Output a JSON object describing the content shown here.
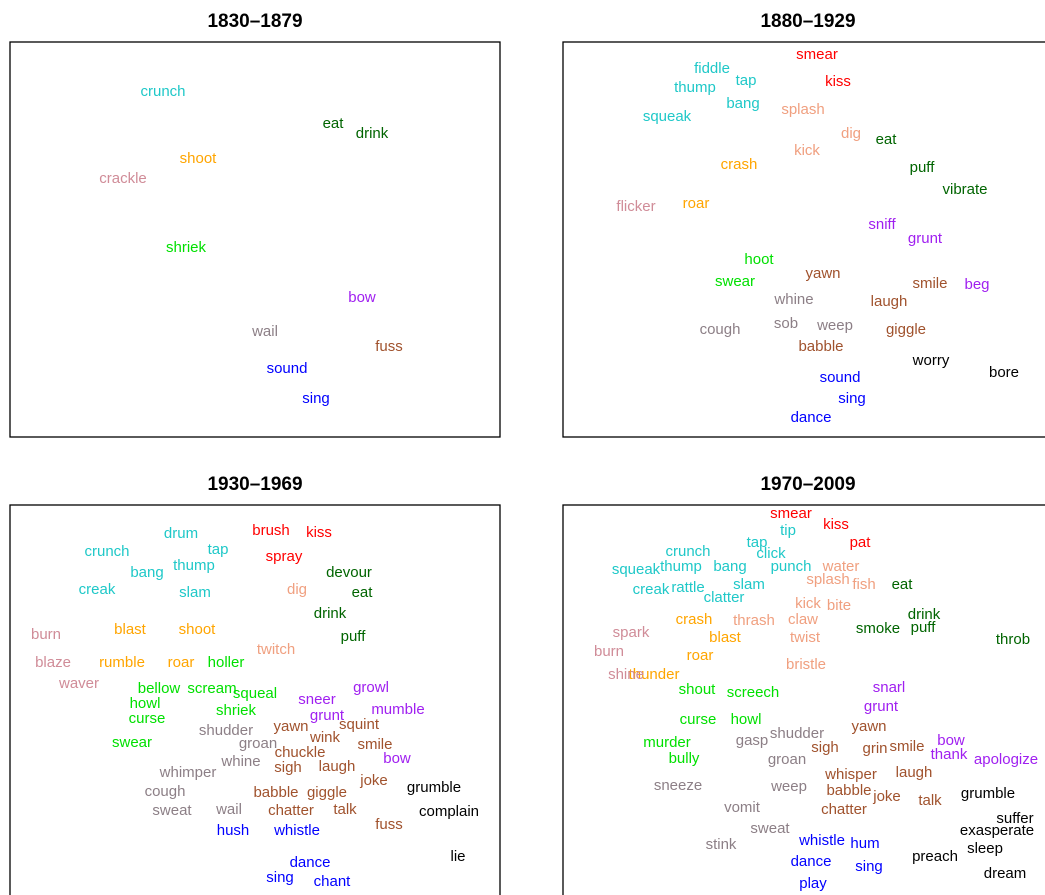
{
  "chart_data": [
    {
      "type": "scatter",
      "title": "1830–1879",
      "xlim": [
        0,
        490
      ],
      "ylim": [
        395,
        0
      ],
      "series": [
        {
          "color": "#1fc8c8",
          "labels": [
            "crunch"
          ],
          "x": [
            153
          ],
          "y": [
            50
          ]
        },
        {
          "color": "#006400",
          "labels": [
            "eat",
            "drink"
          ],
          "x": [
            323,
            362
          ],
          "y": [
            82,
            92
          ]
        },
        {
          "color": "#ffa500",
          "labels": [
            "shoot"
          ],
          "x": [
            188
          ],
          "y": [
            117
          ]
        },
        {
          "color": "#d08c98",
          "labels": [
            "crackle"
          ],
          "x": [
            113
          ],
          "y": [
            137
          ]
        },
        {
          "color": "#00e000",
          "labels": [
            "shriek"
          ],
          "x": [
            176
          ],
          "y": [
            206
          ]
        },
        {
          "color": "#a020f0",
          "labels": [
            "bow"
          ],
          "x": [
            352
          ],
          "y": [
            256
          ]
        },
        {
          "color": "#8c7f86",
          "labels": [
            "wail"
          ],
          "x": [
            255
          ],
          "y": [
            290
          ]
        },
        {
          "color": "#a0522d",
          "labels": [
            "fuss"
          ],
          "x": [
            379
          ],
          "y": [
            305
          ]
        },
        {
          "color": "#0000ff",
          "labels": [
            "sound",
            "sing"
          ],
          "x": [
            277,
            306
          ],
          "y": [
            327,
            357
          ]
        }
      ]
    },
    {
      "type": "scatter",
      "title": "1880–1929",
      "xlim": [
        0,
        490
      ],
      "ylim": [
        395,
        0
      ],
      "series": [
        {
          "color": "#ff0000",
          "labels": [
            "smear",
            "kiss"
          ],
          "x": [
            254,
            275
          ],
          "y": [
            13,
            40
          ]
        },
        {
          "color": "#1fc8c8",
          "labels": [
            "fiddle",
            "thump",
            "tap",
            "bang",
            "squeak"
          ],
          "x": [
            149,
            132,
            183,
            180,
            104
          ],
          "y": [
            27,
            46,
            39,
            62,
            75
          ]
        },
        {
          "color": "#f0a080",
          "labels": [
            "splash",
            "dig",
            "kick"
          ],
          "x": [
            240,
            288,
            244
          ],
          "y": [
            68,
            92,
            109
          ]
        },
        {
          "color": "#006400",
          "labels": [
            "eat",
            "puff",
            "vibrate"
          ],
          "x": [
            323,
            359,
            402
          ],
          "y": [
            98,
            126,
            148
          ]
        },
        {
          "color": "#ffa500",
          "labels": [
            "crash",
            "roar"
          ],
          "x": [
            176,
            133
          ],
          "y": [
            123,
            162
          ]
        },
        {
          "color": "#d08c98",
          "labels": [
            "flicker"
          ],
          "x": [
            73
          ],
          "y": [
            165
          ]
        },
        {
          "color": "#a020f0",
          "labels": [
            "sniff",
            "grunt",
            "beg"
          ],
          "x": [
            319,
            362,
            414
          ],
          "y": [
            183,
            197,
            243
          ]
        },
        {
          "color": "#00e000",
          "labels": [
            "hoot",
            "swear"
          ],
          "x": [
            196,
            172
          ],
          "y": [
            218,
            240
          ]
        },
        {
          "color": "#a0522d",
          "labels": [
            "yawn",
            "smile",
            "laugh",
            "giggle",
            "babble"
          ],
          "x": [
            260,
            367,
            326,
            343,
            258
          ],
          "y": [
            232,
            242,
            260,
            288,
            305
          ]
        },
        {
          "color": "#8c7f86",
          "labels": [
            "whine",
            "sob",
            "weep",
            "cough"
          ],
          "x": [
            231,
            223,
            272,
            157
          ],
          "y": [
            258,
            282,
            284,
            288
          ]
        },
        {
          "color": "#000000",
          "labels": [
            "worry",
            "bore"
          ],
          "x": [
            368,
            441
          ],
          "y": [
            319,
            331
          ]
        },
        {
          "color": "#0000ff",
          "labels": [
            "sound",
            "sing",
            "dance"
          ],
          "x": [
            277,
            289,
            248
          ],
          "y": [
            336,
            357,
            376
          ]
        }
      ]
    },
    {
      "type": "scatter",
      "title": "1930–1969",
      "xlim": [
        0,
        490
      ],
      "ylim": [
        395,
        0
      ],
      "series": [
        {
          "color": "#1fc8c8",
          "labels": [
            "drum",
            "tap",
            "crunch",
            "bang",
            "thump",
            "creak",
            "slam"
          ],
          "x": [
            171,
            208,
            97,
            137,
            184,
            87,
            185
          ],
          "y": [
            29,
            45,
            47,
            68,
            61,
            85,
            88
          ]
        },
        {
          "color": "#ff0000",
          "labels": [
            "brush",
            "kiss",
            "spray"
          ],
          "x": [
            261,
            309,
            274
          ],
          "y": [
            26,
            28,
            52
          ]
        },
        {
          "color": "#006400",
          "labels": [
            "devour",
            "eat",
            "drink",
            "puff"
          ],
          "x": [
            339,
            352,
            320,
            343
          ],
          "y": [
            68,
            88,
            109,
            132
          ]
        },
        {
          "color": "#f0a080",
          "labels": [
            "dig",
            "twitch"
          ],
          "x": [
            287,
            266
          ],
          "y": [
            85,
            145
          ]
        },
        {
          "color": "#ffa500",
          "labels": [
            "blast",
            "shoot",
            "rumble",
            "roar"
          ],
          "x": [
            120,
            187,
            112,
            171
          ],
          "y": [
            125,
            125,
            158,
            158
          ]
        },
        {
          "color": "#d08c98",
          "labels": [
            "burn",
            "blaze",
            "waver"
          ],
          "x": [
            36,
            43,
            69
          ],
          "y": [
            130,
            158,
            179
          ]
        },
        {
          "color": "#00e000",
          "labels": [
            "holler",
            "bellow",
            "scream",
            "squeal",
            "howl",
            "shriek",
            "curse",
            "swear"
          ],
          "x": [
            216,
            149,
            202,
            245,
            135,
            226,
            137,
            122
          ],
          "y": [
            158,
            184,
            184,
            189,
            199,
            206,
            214,
            238
          ]
        },
        {
          "color": "#a020f0",
          "labels": [
            "sneer",
            "growl",
            "grunt",
            "mumble",
            "bow"
          ],
          "x": [
            307,
            361,
            317,
            388,
            387
          ],
          "y": [
            195,
            183,
            211,
            205,
            254
          ]
        },
        {
          "color": "#a0522d",
          "labels": [
            "yawn",
            "wink",
            "squint",
            "smile",
            "chuckle",
            "sigh",
            "laugh",
            "joke",
            "babble",
            "giggle",
            "chatter",
            "talk",
            "fuss"
          ],
          "x": [
            281,
            315,
            349,
            365,
            290,
            278,
            327,
            364,
            266,
            317,
            281,
            335,
            379
          ],
          "y": [
            222,
            233,
            220,
            240,
            248,
            263,
            262,
            276,
            288,
            288,
            306,
            305,
            320
          ]
        },
        {
          "color": "#8c7f86",
          "labels": [
            "shudder",
            "groan",
            "whine",
            "whimper",
            "cough",
            "sweat",
            "wail"
          ],
          "x": [
            216,
            248,
            231,
            178,
            155,
            162,
            219
          ],
          "y": [
            226,
            239,
            257,
            268,
            287,
            306,
            305
          ]
        },
        {
          "color": "#000000",
          "labels": [
            "grumble",
            "complain",
            "lie"
          ],
          "x": [
            424,
            439,
            448
          ],
          "y": [
            283,
            307,
            352
          ]
        },
        {
          "color": "#0000ff",
          "labels": [
            "hush",
            "whistle",
            "dance",
            "sing",
            "chant"
          ],
          "x": [
            223,
            287,
            300,
            270,
            322
          ],
          "y": [
            326,
            326,
            358,
            373,
            377
          ]
        }
      ]
    },
    {
      "type": "scatter",
      "title": "1970–2009",
      "xlim": [
        0,
        490
      ],
      "ylim": [
        395,
        0
      ],
      "series": [
        {
          "color": "#ff0000",
          "labels": [
            "smear",
            "kiss",
            "pat"
          ],
          "x": [
            228,
            273,
            297
          ],
          "y": [
            9,
            20,
            38
          ]
        },
        {
          "color": "#1fc8c8",
          "labels": [
            "tip",
            "tap",
            "click",
            "crunch",
            "thump",
            "bang",
            "punch",
            "squeak",
            "creak",
            "rattle",
            "slam",
            "clatter"
          ],
          "x": [
            225,
            194,
            208,
            125,
            118,
            167,
            228,
            73,
            88,
            125,
            186,
            161
          ],
          "y": [
            26,
            38,
            49,
            47,
            62,
            62,
            62,
            65,
            85,
            83,
            80,
            93
          ]
        },
        {
          "color": "#f0a080",
          "labels": [
            "water",
            "splash",
            "fish",
            "kick",
            "bite",
            "claw",
            "thrash",
            "twist",
            "bristle"
          ],
          "x": [
            278,
            265,
            301,
            245,
            276,
            240,
            191,
            242,
            243
          ],
          "y": [
            62,
            75,
            80,
            99,
            101,
            115,
            116,
            133,
            160
          ]
        },
        {
          "color": "#006400",
          "labels": [
            "eat",
            "drink",
            "smoke",
            "puff",
            "throb"
          ],
          "x": [
            339,
            361,
            315,
            360,
            450
          ],
          "y": [
            80,
            110,
            124,
            123,
            135
          ]
        },
        {
          "color": "#ffa500",
          "labels": [
            "crash",
            "blast",
            "roar",
            "thunder"
          ],
          "x": [
            131,
            162,
            137,
            91
          ],
          "y": [
            115,
            133,
            151,
            170
          ]
        },
        {
          "color": "#d08c98",
          "labels": [
            "spark",
            "burn",
            "shine"
          ],
          "x": [
            68,
            46,
            63
          ],
          "y": [
            128,
            147,
            170
          ]
        },
        {
          "color": "#00e000",
          "labels": [
            "shout",
            "screech",
            "curse",
            "howl",
            "murder",
            "bully"
          ],
          "x": [
            134,
            190,
            135,
            183,
            104,
            121
          ],
          "y": [
            185,
            188,
            215,
            215,
            238,
            254
          ]
        },
        {
          "color": "#a020f0",
          "labels": [
            "snarl",
            "grunt",
            "bow",
            "thank",
            "apologize"
          ],
          "x": [
            326,
            318,
            388,
            386,
            443
          ],
          "y": [
            183,
            202,
            236,
            250,
            255
          ]
        },
        {
          "color": "#a0522d",
          "labels": [
            "yawn",
            "sigh",
            "grin",
            "smile",
            "whisper",
            "laugh",
            "babble",
            "joke",
            "talk",
            "chatter"
          ],
          "x": [
            306,
            262,
            312,
            344,
            288,
            351,
            286,
            324,
            367,
            281
          ],
          "y": [
            222,
            243,
            244,
            242,
            270,
            268,
            286,
            292,
            296,
            305
          ]
        },
        {
          "color": "#8c7f86",
          "labels": [
            "shudder",
            "gasp",
            "groan",
            "sneeze",
            "weep",
            "vomit",
            "sweat",
            "stink"
          ],
          "x": [
            234,
            189,
            224,
            115,
            226,
            179,
            207,
            158
          ],
          "y": [
            229,
            236,
            255,
            281,
            282,
            303,
            324,
            340
          ]
        },
        {
          "color": "#000000",
          "labels": [
            "grumble",
            "suffer",
            "exasperate",
            "preach",
            "sleep",
            "dream"
          ],
          "x": [
            425,
            452,
            434,
            372,
            422,
            442
          ],
          "y": [
            289,
            314,
            326,
            352,
            344,
            369
          ]
        },
        {
          "color": "#0000ff",
          "labels": [
            "whistle",
            "hum",
            "dance",
            "sing",
            "play"
          ],
          "x": [
            259,
            302,
            248,
            306,
            250
          ],
          "y": [
            336,
            339,
            357,
            362,
            379
          ]
        }
      ]
    }
  ]
}
